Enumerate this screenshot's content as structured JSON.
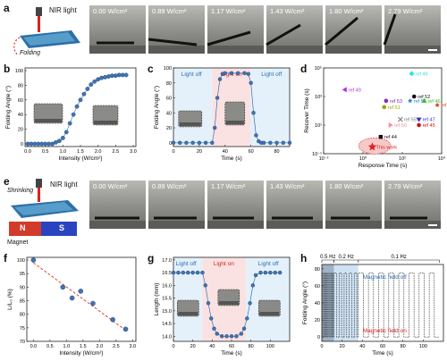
{
  "panels": {
    "a": {
      "letter": "a",
      "light": "NIR light",
      "mode": "Folding",
      "photos": [
        "0.00 W/cm²",
        "0.89 W/cm²",
        "1.17 W/cm²",
        "1.43 W/cm²",
        "1.80 W/cm²",
        "2.79 W/cm²"
      ]
    },
    "b": {
      "letter": "b"
    },
    "c": {
      "letter": "c",
      "light_off_1": "Light off",
      "light_on": "Light on",
      "light_off_2": "Light off"
    },
    "d": {
      "letter": "d"
    },
    "e": {
      "letter": "e",
      "light": "NIR light",
      "mode": "Shrinking",
      "magnet": "Magnet",
      "pole_n": "N",
      "pole_s": "S",
      "photos": [
        "0.00 W/cm²",
        "0.89 W/cm²",
        "1.17 W/cm²",
        "1.43 W/cm²",
        "1.80 W/cm²",
        "2.79 W/cm²"
      ]
    },
    "f": {
      "letter": "f"
    },
    "g": {
      "letter": "g",
      "light_off_1": "Light off",
      "light_on": "Light on",
      "light_off_2": "Light off"
    },
    "h": {
      "letter": "h",
      "freq_1": "0.5 Hz",
      "freq_2": "0.2 Hz",
      "freq_3": "0.1 Hz",
      "field_off": "Magnetic field off",
      "field_on": "Magnetic field on"
    }
  },
  "chart_data": [
    {
      "id": "b",
      "type": "scatter",
      "xlabel": "Intensity (W/cm²)",
      "ylabel": "Folding Angle (°)",
      "xlim": [
        0,
        3.0
      ],
      "ylim": [
        0,
        100
      ],
      "xticks": [
        0.0,
        0.5,
        1.0,
        1.5,
        2.0,
        2.5,
        3.0
      ],
      "yticks": [
        0,
        20,
        40,
        60,
        80,
        100
      ],
      "x": [
        0,
        0.1,
        0.2,
        0.3,
        0.4,
        0.5,
        0.6,
        0.7,
        0.8,
        0.9,
        1.0,
        1.1,
        1.2,
        1.3,
        1.4,
        1.5,
        1.6,
        1.7,
        1.8,
        1.9,
        2.0,
        2.1,
        2.2,
        2.3,
        2.4,
        2.5,
        2.6,
        2.7,
        2.8
      ],
      "y": [
        0,
        0,
        0,
        0,
        0,
        0,
        0,
        0,
        2,
        4,
        8,
        16,
        28,
        40,
        51,
        60,
        68,
        75,
        81,
        85,
        88,
        90,
        91,
        92,
        93,
        93,
        94,
        94,
        94
      ]
    },
    {
      "id": "c",
      "type": "line",
      "xlabel": "Time (s)",
      "ylabel": "Folding Angle (°)",
      "xlim": [
        0,
        90
      ],
      "ylim": [
        -5,
        100
      ],
      "xticks": [
        0,
        20,
        40,
        60,
        80
      ],
      "yticks": [
        0,
        20,
        40,
        60,
        80,
        100
      ],
      "x": [
        0,
        5,
        10,
        15,
        20,
        25,
        30,
        32,
        34,
        36,
        38,
        40,
        45,
        50,
        55,
        58,
        60,
        62,
        64,
        66,
        68,
        70,
        75,
        80,
        85,
        90
      ],
      "y": [
        0,
        0,
        0,
        0,
        0,
        0,
        0,
        20,
        60,
        85,
        92,
        93,
        93,
        93,
        93,
        92,
        80,
        40,
        10,
        2,
        0,
        0,
        0,
        0,
        0,
        0
      ]
    },
    {
      "id": "d",
      "type": "scatter",
      "xlabel": "Response Time (s)",
      "ylabel": "Recover Time (s)",
      "xscale": "log",
      "yscale": "log",
      "xlim": [
        0.01,
        10000
      ],
      "ylim": [
        0.1,
        100000
      ],
      "xticks": [
        "10⁻²",
        "10⁰",
        "10²",
        "10⁴"
      ],
      "yticks": [
        "10⁻¹",
        "10¹",
        "10³",
        "10⁵"
      ],
      "points": [
        {
          "name": "ref 48",
          "x": 300,
          "y": 40000,
          "color": "#39e0e0",
          "marker": "diamond"
        },
        {
          "name": "ref 49",
          "x": 0.12,
          "y": 3000,
          "color": "#b030d0",
          "marker": "triangle-left"
        },
        {
          "name": "ref 53",
          "x": 15,
          "y": 500,
          "color": "#8a2ab0",
          "marker": "circle"
        },
        {
          "name": "ref 51",
          "x": 12,
          "y": 180,
          "color": "#a0a000",
          "marker": "circle"
        },
        {
          "name": "ref 52",
          "x": 400,
          "y": 1000,
          "color": "#111111",
          "marker": "circle"
        },
        {
          "name": "ref 56",
          "x": 250,
          "y": 500,
          "color": "#2a7fd0",
          "marker": "star"
        },
        {
          "name": "ref 46",
          "x": 1300,
          "y": 500,
          "color": "#30c030",
          "marker": "triangle"
        },
        {
          "name": "ref 54",
          "x": 6000,
          "y": 250,
          "color": "#e04020",
          "marker": "star"
        },
        {
          "name": "ref 55",
          "x": 80,
          "y": 25,
          "color": "#777777",
          "marker": "cross"
        },
        {
          "name": "ref 47",
          "x": 700,
          "y": 25,
          "color": "#3030c0",
          "marker": "triangle-down"
        },
        {
          "name": "ref 50",
          "x": 25,
          "y": 10,
          "color": "#f09090",
          "marker": "triangle-right"
        },
        {
          "name": "ref 45",
          "x": 700,
          "y": 10,
          "color": "#d01010",
          "marker": "circle"
        },
        {
          "name": "ref 44",
          "x": 8,
          "y": 1.5,
          "color": "#111111",
          "marker": "square"
        },
        {
          "name": "This work",
          "x": 3,
          "y": 0.3,
          "color": "#e02020",
          "marker": "star"
        }
      ]
    },
    {
      "id": "f",
      "type": "scatter",
      "xlabel": "Intensity (W/cm²)",
      "ylabel": "L/L₀ (%)",
      "xlim": [
        -0.2,
        3.1
      ],
      "ylim": [
        70,
        101
      ],
      "xticks": [
        0.0,
        0.5,
        1.0,
        1.5,
        2.0,
        2.5,
        3.0
      ],
      "yticks": [
        70,
        75,
        80,
        85,
        90,
        95,
        100
      ],
      "x": [
        0.0,
        0.89,
        1.17,
        1.43,
        1.8,
        2.4,
        2.79
      ],
      "y": [
        100,
        90,
        86,
        88.5,
        84,
        78,
        74.5
      ],
      "trend": [
        [
          0,
          99
        ],
        [
          2.8,
          74
        ]
      ]
    },
    {
      "id": "g",
      "type": "line",
      "xlabel": "Time (s)",
      "ylabel": "Length (mm)",
      "xlim": [
        0,
        120
      ],
      "ylim": [
        13.8,
        17.1
      ],
      "xticks": [
        0,
        20,
        40,
        60,
        80,
        100
      ],
      "yticks": [
        14.0,
        14.5,
        15.0,
        15.5,
        16.0,
        16.5,
        17.0
      ],
      "x": [
        0,
        5,
        10,
        15,
        20,
        25,
        30,
        33,
        36,
        39,
        42,
        45,
        50,
        55,
        60,
        65,
        70,
        73,
        76,
        79,
        82,
        85,
        90,
        95,
        100,
        105,
        110
      ],
      "y": [
        16.5,
        16.5,
        16.5,
        16.5,
        16.5,
        16.5,
        16.5,
        16.0,
        15.3,
        14.7,
        14.3,
        14.1,
        14.0,
        14.0,
        14.0,
        14.0,
        14.1,
        14.3,
        14.7,
        15.3,
        16.0,
        16.4,
        16.5,
        16.5,
        16.5,
        16.5,
        16.5
      ]
    },
    {
      "id": "h",
      "type": "line",
      "xlabel": "Time (s)",
      "ylabel": "Folding Angle (°)",
      "xlim": [
        0,
        120
      ],
      "ylim": [
        -5,
        85
      ],
      "xticks": [
        0,
        20,
        40,
        60,
        80,
        100
      ],
      "yticks": [
        0,
        20,
        40,
        60,
        80
      ],
      "square_wave_high": 75,
      "square_wave_low": 0,
      "segments": [
        {
          "label": "0.5 Hz",
          "from": 0,
          "to": 12,
          "period": 2
        },
        {
          "label": "0.2 Hz",
          "from": 12,
          "to": 36,
          "period": 5
        },
        {
          "label": "0.1 Hz",
          "from": 36,
          "to": 116,
          "period": 10
        }
      ]
    }
  ]
}
